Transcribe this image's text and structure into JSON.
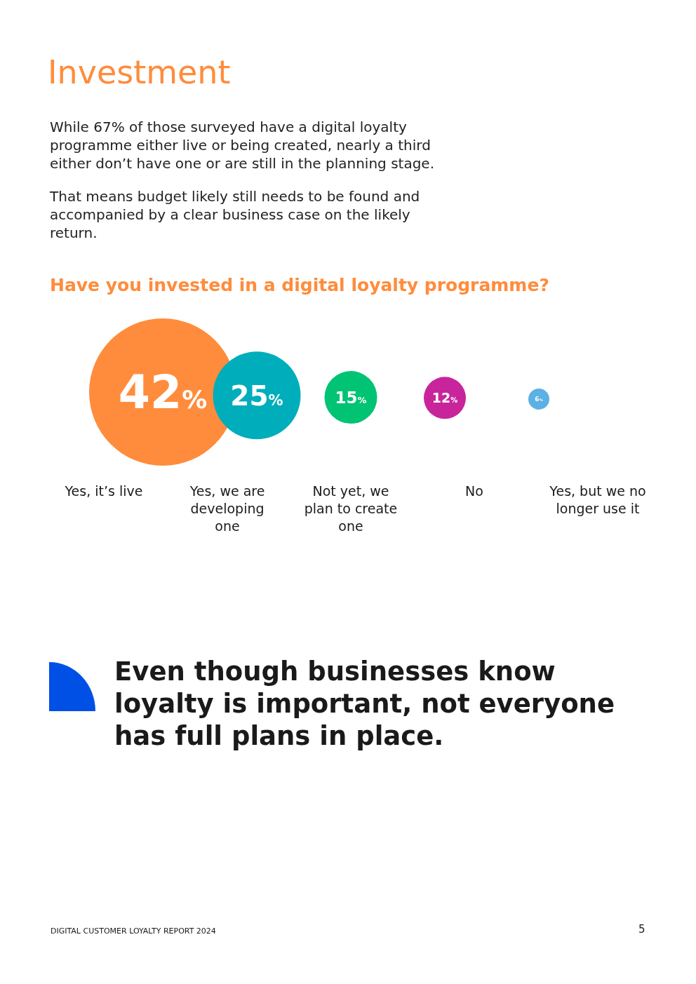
{
  "chart_data": {
    "type": "other",
    "title": "Investment",
    "subtitle": "Have you invested in a digital loyalty programme?",
    "categories": [
      "Yes, it’s live",
      "Yes, we are developing one",
      "Not yet, we plan to create one",
      "No",
      "Yes, but we no longer use it"
    ],
    "values": [
      42,
      25,
      15,
      12,
      6
    ],
    "colors": [
      "#ff8c3c",
      "#00aebb",
      "#00c373",
      "#c8259c",
      "#5cb0e4"
    ],
    "value_labels": [
      "42%",
      "25%",
      "15%",
      "12%",
      "6%"
    ],
    "annotations": [
      "While 67% of those surveyed have a digital loyalty programme either live or being created, nearly a third either don’t have one or are still in the planning stage.",
      "That means budget likely still needs to be found and accompanied by a clear business case on the likely return.",
      "Even though businesses know loyalty is important, not everyone has full plans in place.",
      "DIGITAL CUSTOMER LOYALTY REPORT 2024",
      "5"
    ]
  }
}
